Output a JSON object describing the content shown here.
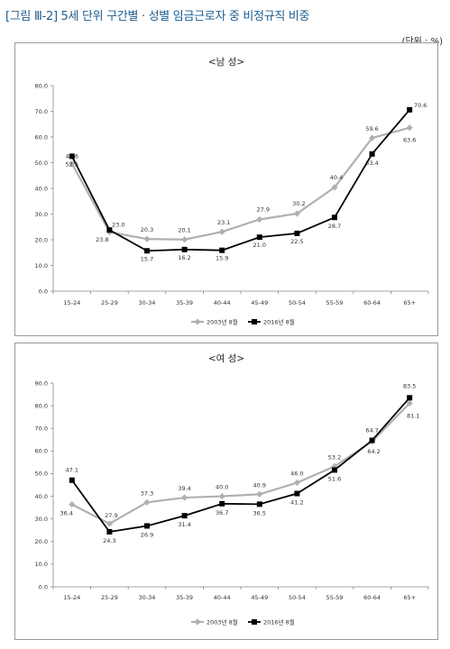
{
  "figure": {
    "title": "[그림 Ⅲ-2] 5세 단위 구간별 · 성별 임금근로자 중 비정규직 비중",
    "unit": "(단위 : %)"
  },
  "chart_data": [
    {
      "type": "line",
      "title": "<남 성>",
      "categories": [
        "15-24",
        "25-29",
        "30-34",
        "35-39",
        "40-44",
        "45-49",
        "50-54",
        "55-59",
        "60-64",
        "65+"
      ],
      "ylim": [
        0,
        80
      ],
      "yticks": [
        "0.0",
        "10.0",
        "20.0",
        "30.0",
        "40.0",
        "50.0",
        "60.0",
        "70.0",
        "80.0"
      ],
      "grid": false,
      "legend_position": "bottom",
      "series": [
        {
          "name": "2003년 8월",
          "color": "#b0b0b0",
          "marker": "diamond",
          "values": [
            49.6,
            23.0,
            20.3,
            20.1,
            23.1,
            27.9,
            30.2,
            40.4,
            59.6,
            63.6
          ],
          "labels": [
            "49.6",
            "23.0",
            "20.3",
            "20.1",
            "23.1",
            "27.9",
            "30.2",
            "40.4",
            "59.6",
            "63.6"
          ]
        },
        {
          "name": "2016년 8월",
          "color": "#000000",
          "marker": "square",
          "values": [
            52.5,
            23.8,
            15.7,
            16.2,
            15.9,
            21.0,
            22.5,
            28.7,
            53.4,
            70.6
          ],
          "labels": [
            "52.5",
            "23.8",
            "15.7",
            "16.2",
            "15.9",
            "21.0",
            "22.5",
            "28.7",
            "53.4",
            "70.6"
          ]
        }
      ]
    },
    {
      "type": "line",
      "title": "<여 성>",
      "categories": [
        "15-24",
        "25-29",
        "30-34",
        "35-39",
        "40-44",
        "45-49",
        "50-54",
        "55-59",
        "60-64",
        "65+"
      ],
      "ylim": [
        0,
        90
      ],
      "yticks": [
        "0.0",
        "10.0",
        "20.0",
        "30.0",
        "40.0",
        "50.0",
        "60.0",
        "70.0",
        "80.0",
        "90.0"
      ],
      "grid": false,
      "legend_position": "bottom",
      "series": [
        {
          "name": "2003년 8월",
          "color": "#b0b0b0",
          "marker": "diamond",
          "values": [
            36.4,
            27.9,
            37.3,
            39.4,
            40.0,
            40.9,
            46.0,
            53.2,
            64.2,
            81.1
          ],
          "labels": [
            "36.4",
            "27.9",
            "37.3",
            "39.4",
            "40.0",
            "40.9",
            "46.0",
            "53.2",
            "64.2",
            "81.1"
          ]
        },
        {
          "name": "2016년 8월",
          "color": "#000000",
          "marker": "square",
          "values": [
            47.1,
            24.3,
            26.9,
            31.4,
            36.7,
            36.5,
            41.2,
            51.6,
            64.7,
            83.5
          ],
          "labels": [
            "47.1",
            "24.3",
            "26.9",
            "31.4",
            "36.7",
            "36.5",
            "41.2",
            "51.6",
            "64.7",
            "83.5"
          ]
        }
      ]
    }
  ]
}
